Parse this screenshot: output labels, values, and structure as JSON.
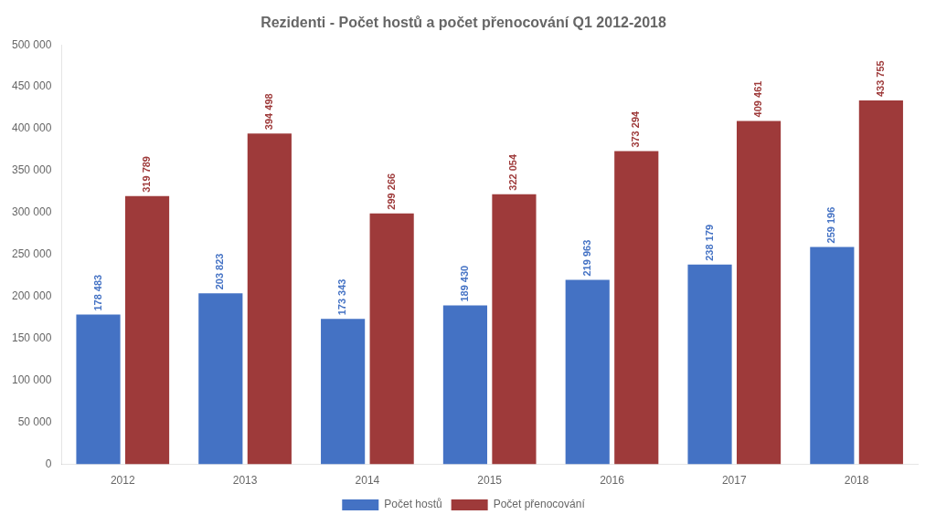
{
  "chart_data": {
    "type": "bar",
    "title": "Rezidenti - Počet hostů a počet přenocování Q1 2012-2018",
    "categories": [
      "2012",
      "2013",
      "2014",
      "2015",
      "2016",
      "2017",
      "2018"
    ],
    "series": [
      {
        "name": "Počet hostů",
        "color": "#4472C4",
        "values": [
          178483,
          203823,
          173343,
          189430,
          219963,
          238179,
          259196
        ],
        "value_labels": [
          "178 483",
          "203 823",
          "173 343",
          "189 430",
          "219 963",
          "238 179",
          "259 196"
        ]
      },
      {
        "name": "Počet přenocování",
        "color": "#9E3A3A",
        "values": [
          319789,
          394498,
          299266,
          322054,
          373294,
          409461,
          433755
        ],
        "value_labels": [
          "319 789",
          "394 498",
          "299 266",
          "322 054",
          "373 294",
          "409 461",
          "433 755"
        ]
      }
    ],
    "ylim": [
      0,
      500000
    ],
    "yticks": [
      0,
      {
        "value": 50000,
        "label": "50 000"
      },
      {
        "value": 100000,
        "label": "100 000"
      },
      {
        "value": 150000,
        "label": "150 000"
      },
      {
        "value": 200000,
        "label": "200 000"
      },
      {
        "value": 250000,
        "label": "250 000"
      },
      {
        "value": 300000,
        "label": "300 000"
      },
      {
        "value": 350000,
        "label": "350 000"
      },
      {
        "value": 400000,
        "label": "400 000"
      },
      {
        "value": 450000,
        "label": "450 000"
      },
      {
        "value": 500000,
        "label": "500 000"
      }
    ],
    "grid": false,
    "legend": "bottom",
    "data_labels": true
  }
}
